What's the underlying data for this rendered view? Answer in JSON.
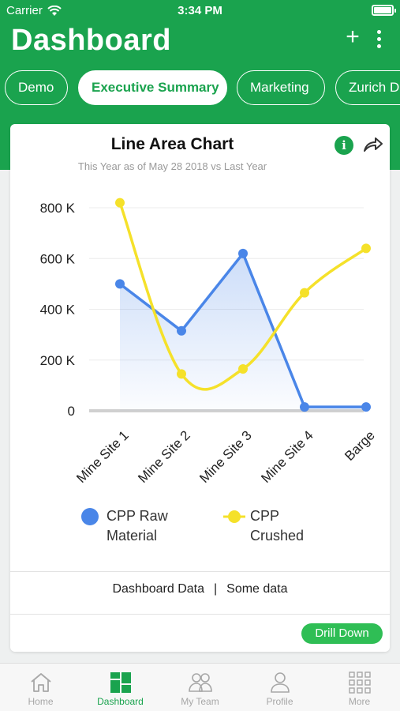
{
  "status_bar": {
    "carrier": "Carrier",
    "time": "3:34 PM"
  },
  "header": {
    "title": "Dashboard"
  },
  "tabs": [
    {
      "label": "Demo",
      "active": false
    },
    {
      "label": "Executive Summary",
      "active": true
    },
    {
      "label": "Marketing",
      "active": false
    },
    {
      "label": "Zurich Dashboard",
      "active": false
    }
  ],
  "card": {
    "title": "Line Area Chart",
    "subtitle": "This Year as of May 28 2018 vs Last Year",
    "footer_left": "Dashboard Data",
    "footer_separator": "|",
    "footer_right": "Some data",
    "drill_down_label": "Drill Down"
  },
  "chart_data": {
    "type": "line",
    "categories": [
      "Mine Site 1",
      "Mine Site 2",
      "Mine Site 3",
      "Mine Site 4",
      "Barge"
    ],
    "y_ticks": [
      "0",
      "200 K",
      "400 K",
      "600 K",
      "800 K"
    ],
    "ylim": [
      0,
      800000
    ],
    "grid": true,
    "legend_position": "bottom",
    "series": [
      {
        "name": "CPP Raw Material",
        "color": "#4a86e8",
        "area": true,
        "values": [
          500000,
          315000,
          620000,
          15000,
          15000
        ]
      },
      {
        "name": "CPP Crushed",
        "color": "#f5e12a",
        "area": false,
        "values": [
          820000,
          145000,
          165000,
          465000,
          640000
        ]
      }
    ]
  },
  "legend": [
    {
      "line1": "CPP Raw",
      "line2": "Material",
      "color": "#4a86e8"
    },
    {
      "line1": "CPP",
      "line2": "Crushed",
      "color": "#f5e12a"
    }
  ],
  "tabbar": [
    {
      "label": "Home",
      "icon": "home-icon",
      "active": false
    },
    {
      "label": "Dashboard",
      "icon": "dashboard-icon",
      "active": true
    },
    {
      "label": "My Team",
      "icon": "team-icon",
      "active": false
    },
    {
      "label": "Profile",
      "icon": "profile-icon",
      "active": false
    },
    {
      "label": "More",
      "icon": "grid-icon",
      "active": false
    }
  ],
  "colors": {
    "brand": "#1aa34e",
    "drill_button": "#2fbe55"
  }
}
